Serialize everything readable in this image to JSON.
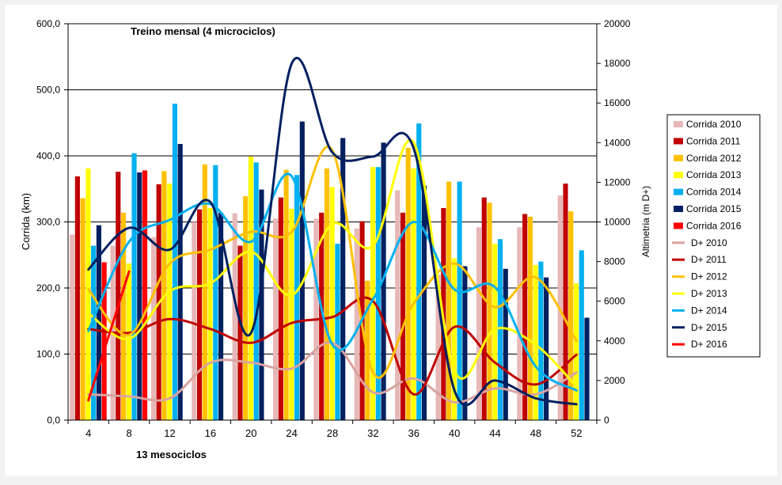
{
  "chart_data": {
    "type": "bar",
    "title": "Treino mensal (4 microciclos)",
    "xlabel": "13 mesociclos",
    "ylabel": "Corrida (km)",
    "y2label": "Altimetria (m D+)",
    "categories": [
      "4",
      "8",
      "12",
      "16",
      "20",
      "24",
      "28",
      "32",
      "36",
      "40",
      "44",
      "48",
      "52"
    ],
    "ylim": [
      0,
      600
    ],
    "y2lim": [
      0,
      20000
    ],
    "yticks": [
      "0,0",
      "100,0",
      "200,0",
      "300,0",
      "400,0",
      "500,0",
      "600,0"
    ],
    "y2ticks": [
      "0",
      "2000",
      "4000",
      "6000",
      "8000",
      "10000",
      "12000",
      "14000",
      "16000",
      "18000",
      "20000"
    ],
    "grid": true,
    "legend_position": "right",
    "bar_series": [
      {
        "name": "Corrida 2010",
        "color": "#e6b8b7",
        "values": [
          281,
          264,
          277,
          300,
          313,
          305,
          305,
          290,
          348,
          220,
          292,
          292,
          340
        ]
      },
      {
        "name": "Corrida 2011",
        "color": "#c00000",
        "values": [
          369,
          376,
          357,
          319,
          264,
          337,
          314,
          301,
          314,
          321,
          337,
          312,
          358
        ]
      },
      {
        "name": "Corrida 2012",
        "color": "#ffc000",
        "values": [
          336,
          314,
          377,
          387,
          339,
          379,
          381,
          211,
          412,
          361,
          329,
          308,
          316
        ]
      },
      {
        "name": "Corrida 2013",
        "color": "#ffff00",
        "values": [
          381,
          237,
          358,
          321,
          399,
          320,
          353,
          383,
          381,
          245,
          267,
          235,
          207
        ]
      },
      {
        "name": "Corrida 2014",
        "color": "#00b0f0",
        "values": [
          264,
          404,
          479,
          386,
          390,
          371,
          267,
          383,
          449,
          361,
          274,
          240,
          257
        ]
      },
      {
        "name": "Corrida 2015",
        "color": "#002060",
        "values": [
          295,
          375,
          418,
          314,
          349,
          452,
          427,
          420,
          355,
          233,
          229,
          216,
          155
        ]
      },
      {
        "name": "Corrida 2016",
        "color": "#ff0000",
        "values": [
          239,
          378,
          null,
          null,
          null,
          null,
          null,
          null,
          null,
          null,
          null,
          null,
          null
        ]
      }
    ],
    "line_series": [
      {
        "name": "D+ 2010",
        "color": "#d9a3a1",
        "values": [
          1300,
          1200,
          1100,
          2900,
          2900,
          2600,
          3900,
          1400,
          2100,
          900,
          1600,
          1300,
          2400
        ]
      },
      {
        "name": "D+ 2011",
        "color": "#c00000",
        "values": [
          4600,
          4400,
          5100,
          4600,
          3900,
          4900,
          5200,
          6000,
          1300,
          4700,
          2900,
          1800,
          3300
        ]
      },
      {
        "name": "D+ 2012",
        "color": "#ffc000",
        "values": [
          6600,
          4300,
          7900,
          8600,
          9500,
          9500,
          13600,
          2400,
          5900,
          7900,
          5700,
          7200,
          4000
        ]
      },
      {
        "name": "D+ 2013",
        "color": "#ffff00",
        "values": [
          5400,
          4100,
          6500,
          6900,
          8500,
          6300,
          9900,
          8800,
          14000,
          2500,
          4600,
          3800,
          1700
        ]
      },
      {
        "name": "D+ 2014",
        "color": "#00b0f0",
        "values": [
          4500,
          9000,
          10100,
          10900,
          9000,
          12300,
          3800,
          6100,
          10000,
          6600,
          6700,
          2700,
          1500
        ]
      },
      {
        "name": "D+ 2015",
        "color": "#002060",
        "values": [
          7600,
          9700,
          8600,
          11000,
          4400,
          18000,
          13500,
          13300,
          13700,
          1500,
          2000,
          1100,
          800
        ]
      },
      {
        "name": "D+ 2016",
        "color": "#ff0000",
        "values": [
          1000,
          7500,
          null,
          null,
          null,
          null,
          null,
          null,
          null,
          null,
          null,
          null,
          null
        ]
      }
    ]
  }
}
